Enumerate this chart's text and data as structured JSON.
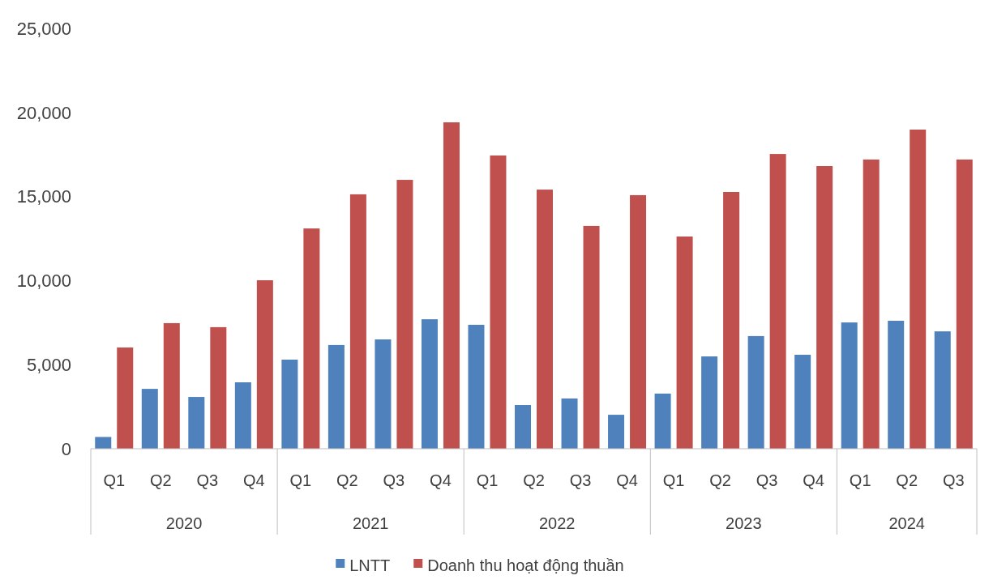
{
  "chart_data": {
    "type": "bar",
    "categories": [
      "Q1",
      "Q2",
      "Q3",
      "Q4",
      "Q1",
      "Q2",
      "Q3",
      "Q4",
      "Q1",
      "Q2",
      "Q3",
      "Q4",
      "Q1",
      "Q2",
      "Q3",
      "Q4",
      "Q1",
      "Q2",
      "Q3"
    ],
    "series": [
      {
        "name": "LNTT",
        "color": "#4f81bd",
        "values": [
          700,
          3560,
          3080,
          3950,
          5300,
          6170,
          6500,
          7700,
          7370,
          2600,
          2990,
          2020,
          3280,
          5490,
          6700,
          5590,
          7510,
          7610,
          6980
        ]
      },
      {
        "name": "Doanh thu hoạt động thuần",
        "color": "#c0504d",
        "values": [
          6020,
          7470,
          7230,
          10020,
          13100,
          15130,
          15990,
          19410,
          17440,
          15410,
          13250,
          15080,
          12620,
          15270,
          17530,
          16810,
          17200,
          18980,
          17200
        ]
      }
    ],
    "annotations": [
      "2020",
      "2021",
      "2022",
      "2023",
      "2024"
    ],
    "ylim": [
      0,
      25000
    ],
    "yticks": [
      {
        "value": 0,
        "label": "0"
      },
      {
        "value": 5000,
        "label": "5,000"
      },
      {
        "value": 10000,
        "label": "10,000"
      },
      {
        "value": 15000,
        "label": "15,000"
      },
      {
        "value": 20000,
        "label": "20,000"
      },
      {
        "value": 25000,
        "label": "25,000"
      }
    ],
    "grid": false,
    "legend": "bottom"
  }
}
